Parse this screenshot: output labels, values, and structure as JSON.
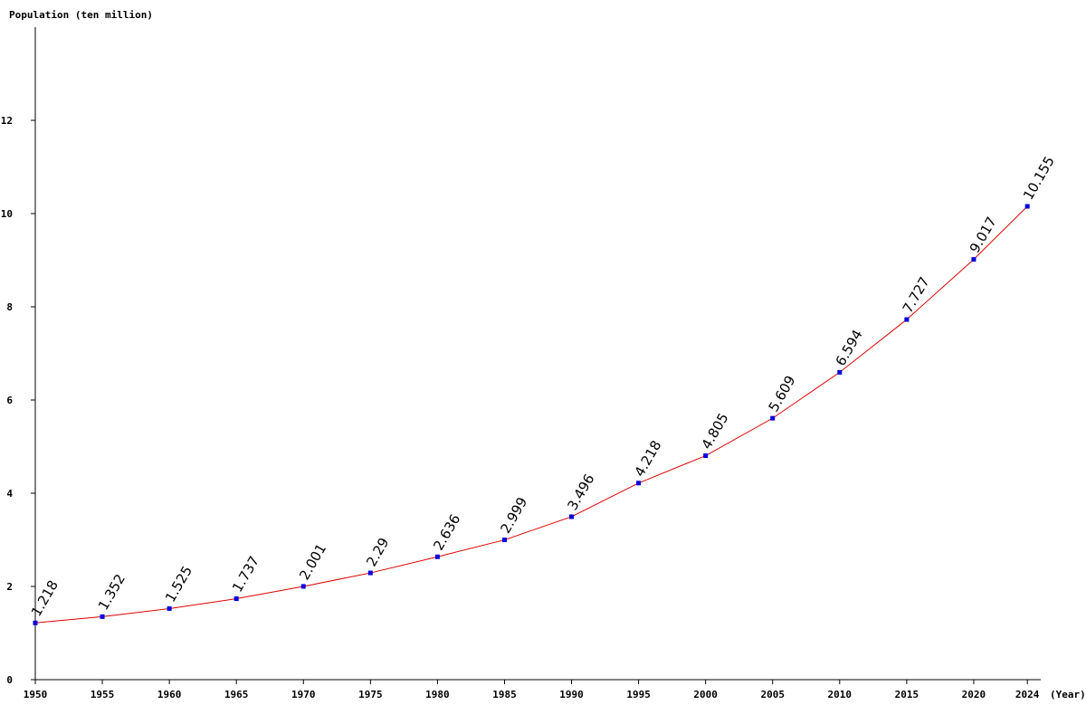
{
  "chart_data": {
    "type": "line",
    "y_label": "Population (ten million)",
    "x_label": "(Year)",
    "x": [
      1950,
      1955,
      1960,
      1965,
      1970,
      1975,
      1980,
      1985,
      1990,
      1995,
      2000,
      2005,
      2010,
      2015,
      2020,
      2024
    ],
    "series": [
      {
        "color": "#dd0000",
        "marker_color": "#0000dd",
        "values": [
          1.218,
          1.352,
          1.525,
          1.737,
          2.001,
          2.29,
          2.636,
          2.999,
          3.496,
          4.218,
          4.805,
          5.609,
          6.594,
          7.727,
          9.017,
          10.155
        ]
      }
    ],
    "xlim": [
      1950,
      2025
    ],
    "xticks": [
      1950,
      1955,
      1960,
      1965,
      1970,
      1975,
      1980,
      1985,
      1990,
      1995,
      2000,
      2005,
      2010,
      2015,
      2020,
      2024
    ],
    "ylim": [
      0,
      14
    ],
    "yticks": [
      0,
      2,
      4,
      6,
      8,
      10,
      12
    ]
  }
}
